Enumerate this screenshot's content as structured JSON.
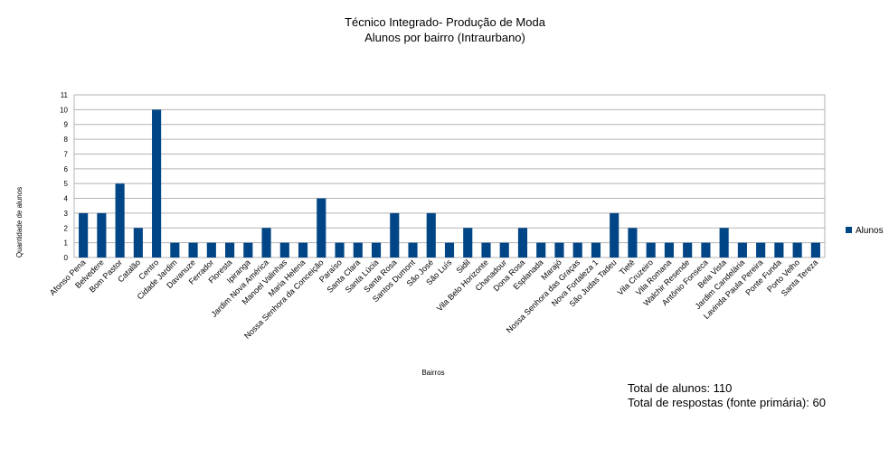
{
  "chart_data": {
    "type": "bar",
    "title": "Técnico Integrado- Produção de Moda",
    "subtitle": "Alunos por bairro (Intraurbano)",
    "xlabel": "Bairros",
    "ylabel": "Quantidade de alunos",
    "ylim": [
      0,
      11
    ],
    "yticks": [
      0,
      1,
      2,
      3,
      4,
      5,
      6,
      7,
      8,
      9,
      10,
      11
    ],
    "grid": true,
    "legend_position": "right",
    "color": "#004586",
    "categories": [
      "Afonso Pena",
      "Belvedere",
      "Bom Pastor",
      "Catalão",
      "Centro",
      "Cidade Jardim",
      "Davanuze",
      "Ferrador",
      "Floresta",
      "Ipiranga",
      "Jardim Nova América",
      "Manoel Valinhas",
      "Maria Helena",
      "Nossa Senhora da Conceição",
      "Paraíso",
      "Santa Clara",
      "Santa Lúcia",
      "Santa Rosa",
      "Santos Dumont",
      "São José",
      "São Luís",
      "Sidil",
      "Vila Belo Horizonte",
      "Chanadour",
      "Dona Rosa",
      "Esplanada",
      "Marajó",
      "Nossa Senhora das Graças",
      "Nova Fortaleza 1",
      "São Judas Tadeu",
      "Tietê",
      "Vila Cruzeiro",
      "Vila Romana",
      "Walchir Resende",
      "Antônio Fonseca",
      "Bela Vista",
      "Jardim Candelária",
      "Lavinda Paula Pereira",
      "Ponte Funda",
      "Porto Velho",
      "Santa Tereza"
    ],
    "series": [
      {
        "name": "Alunos",
        "values": [
          3,
          3,
          5,
          2,
          10,
          1,
          1,
          1,
          1,
          1,
          2,
          1,
          1,
          4,
          1,
          1,
          1,
          3,
          1,
          3,
          1,
          2,
          1,
          1,
          2,
          1,
          1,
          1,
          1,
          3,
          2,
          1,
          1,
          1,
          1,
          2,
          1,
          1,
          1,
          1,
          1
        ]
      }
    ]
  },
  "footer": {
    "total_alunos": "Total de alunos: 110",
    "total_respostas": "Total de respostas (fonte primária): 60"
  }
}
